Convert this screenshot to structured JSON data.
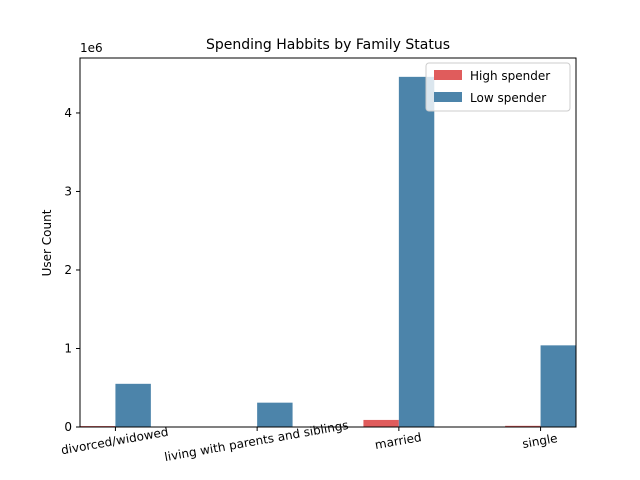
{
  "chart_data": {
    "type": "bar",
    "title": "Spending Habbits by Family Status",
    "xlabel": "",
    "ylabel": "User Count",
    "y_multiplier_label": "1e6",
    "ylim": [
      0,
      4.7
    ],
    "y_ticks": [
      0,
      1,
      2,
      3,
      4
    ],
    "grid": false,
    "legend_placement": "top-right",
    "categories": [
      "divorced/widowed",
      "living with parents and siblings",
      "married",
      "single"
    ],
    "series": [
      {
        "name": "High spender",
        "color": "#e05c5c",
        "values": [
          0.012,
          0.002,
          0.09,
          0.015
        ]
      },
      {
        "name": "Low spender",
        "color": "#4c84aa",
        "values": [
          0.55,
          0.31,
          4.46,
          1.04
        ]
      }
    ]
  }
}
